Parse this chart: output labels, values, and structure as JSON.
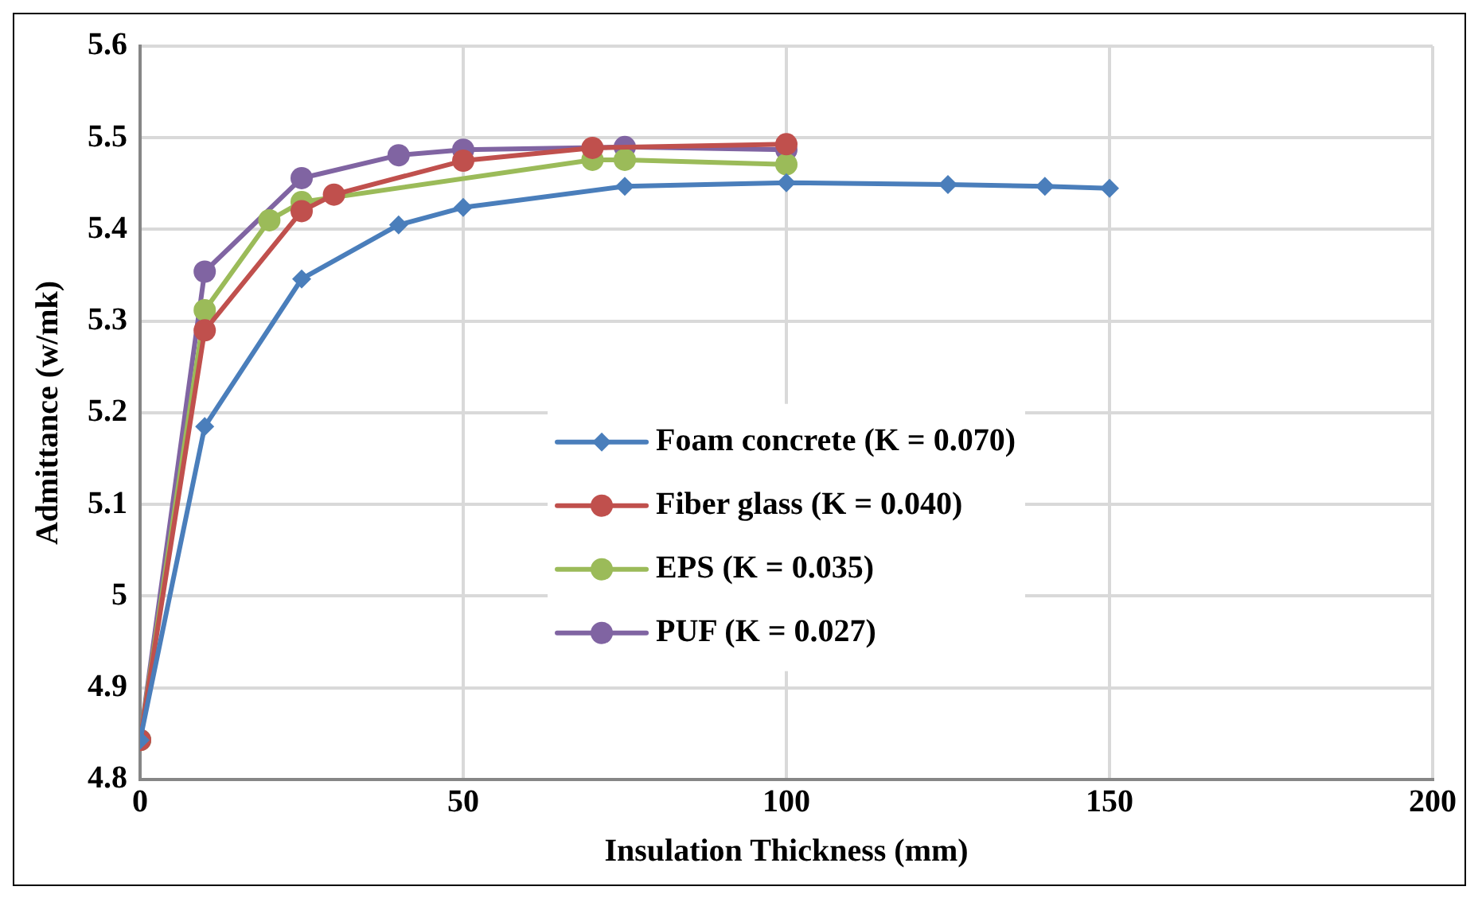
{
  "chart_data": {
    "type": "line",
    "xlabel": "Insulation Thickness (mm)",
    "ylabel": "Admittance (w/mk)",
    "xlim": [
      0,
      200
    ],
    "xticks": [
      0,
      50,
      100,
      150,
      200
    ],
    "ylim": [
      4.8,
      5.6
    ],
    "yticks": [
      {
        "value": 4.8,
        "label": "4.8"
      },
      {
        "value": 4.9,
        "label": "4.9"
      },
      {
        "value": 5,
        "label": "5"
      },
      {
        "value": 5.1,
        "label": "5.1"
      },
      {
        "value": 5.2,
        "label": "5.2"
      },
      {
        "value": 5.3,
        "label": "5.3"
      },
      {
        "value": 5.4,
        "label": "5.4"
      },
      {
        "value": 5.5,
        "label": "5.5"
      },
      {
        "value": 5.6,
        "label": "5.6"
      }
    ],
    "grid": true,
    "legend": "bottom",
    "series": [
      {
        "name": "Foam concrete (K = 0.070)",
        "color": "#4a7ebb",
        "marker": "diamond",
        "x": [
          0,
          10,
          25,
          40,
          50,
          75,
          100,
          125,
          140,
          150
        ],
        "values": [
          4.843,
          5.185,
          5.346,
          5.405,
          5.424,
          5.447,
          5.451,
          5.449,
          5.447,
          5.445
        ]
      },
      {
        "name": "Fiber glass (K = 0.040)",
        "color": "#c0504d",
        "marker": "circle",
        "x": [
          0,
          10,
          25,
          30,
          50,
          70,
          100
        ],
        "values": [
          4.843,
          5.29,
          5.42,
          5.438,
          5.475,
          5.489,
          5.493
        ]
      },
      {
        "name": "EPS (K = 0.035)",
        "color": "#9bbb59",
        "marker": "circle",
        "x": [
          0,
          10,
          20,
          25,
          70,
          75,
          100
        ],
        "values": [
          4.843,
          5.312,
          5.41,
          5.43,
          5.476,
          5.476,
          5.471
        ]
      },
      {
        "name": "PUF (K = 0.027)",
        "color": "#8064a2",
        "marker": "circle",
        "x": [
          0,
          10,
          25,
          40,
          50,
          75,
          100
        ],
        "values": [
          4.843,
          5.354,
          5.456,
          5.481,
          5.487,
          5.49,
          5.487
        ]
      }
    ]
  }
}
